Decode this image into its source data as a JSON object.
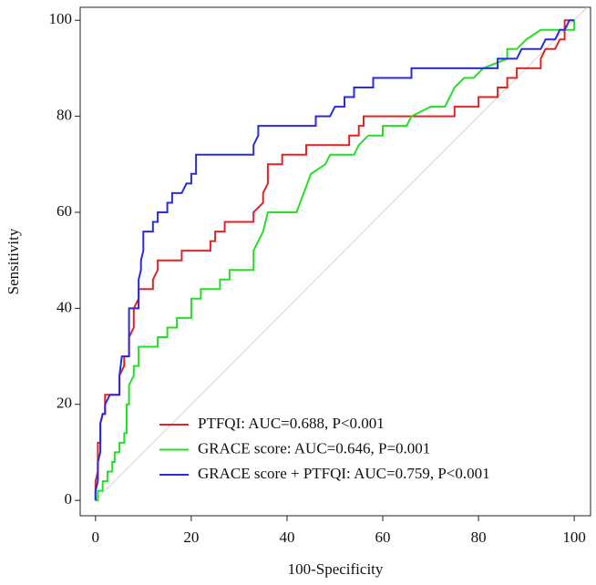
{
  "chart_data": {
    "type": "line",
    "title_x": "100-Specificity",
    "title_y": "Sensitivity",
    "xlim": [
      -3.2,
      103.4
    ],
    "ylim": [
      -3.2,
      102.7
    ],
    "xticks": [
      0,
      20,
      40,
      60,
      80,
      100
    ],
    "yticks": [
      0,
      20,
      40,
      60,
      80,
      100
    ],
    "reference_line": true,
    "legend": "lower center",
    "series": [
      {
        "name": "PTFQI: AUC=0.688, P<0.001",
        "color": "#e32222",
        "x": [
          0,
          0,
          0.5,
          0.5,
          1,
          1,
          1.5,
          2,
          2,
          5,
          5,
          6,
          6,
          7,
          7,
          8,
          8,
          9,
          9,
          12,
          12,
          13,
          13,
          18,
          18,
          24,
          24,
          25,
          25,
          27,
          27,
          33,
          33,
          35,
          35,
          36,
          36,
          39,
          39,
          44,
          44,
          53,
          53,
          55,
          55,
          56,
          56,
          75,
          75,
          80,
          80,
          84,
          84,
          86,
          86,
          88,
          88,
          93,
          93,
          94,
          96,
          97,
          98,
          98,
          100
        ],
        "values": [
          0,
          4,
          6,
          12,
          12,
          16,
          18,
          18,
          22,
          22,
          26,
          28,
          30,
          30,
          34,
          36,
          40,
          42,
          44,
          44,
          46,
          48,
          50,
          50,
          52,
          52,
          54,
          54,
          56,
          56,
          58,
          58,
          60,
          62,
          64,
          66,
          70,
          70,
          72,
          72,
          74,
          74,
          76,
          76,
          78,
          78,
          80,
          80,
          82,
          82,
          84,
          84,
          86,
          86,
          88,
          88,
          90,
          90,
          92,
          94,
          94,
          96,
          96,
          100,
          100
        ]
      },
      {
        "name": "GRACE score: AUC=0.646, P=0.001",
        "color": "#22e022",
        "x": [
          0,
          0.5,
          0.5,
          1.5,
          1.5,
          2.5,
          2.5,
          3.5,
          3.5,
          4,
          4,
          5,
          5,
          6,
          6,
          6.5,
          6.5,
          7,
          7,
          8,
          8,
          9,
          9,
          13,
          13,
          15,
          15,
          17,
          17,
          20,
          20,
          22,
          22,
          26,
          26,
          28,
          28,
          33,
          33,
          35,
          36,
          42,
          45,
          48,
          49,
          54,
          55,
          57,
          60,
          60,
          65,
          66,
          70,
          73,
          74,
          75,
          77,
          79,
          81,
          86,
          86,
          88,
          90,
          93,
          100,
          100
        ],
        "values": [
          0,
          0,
          2,
          2,
          4,
          4,
          6,
          6,
          8,
          8,
          10,
          10,
          12,
          12,
          14,
          14,
          20,
          20,
          24,
          26,
          28,
          28,
          32,
          32,
          34,
          34,
          36,
          36,
          38,
          38,
          42,
          42,
          44,
          44,
          46,
          46,
          48,
          48,
          52,
          56,
          60,
          60,
          68,
          70,
          72,
          72,
          74,
          76,
          76,
          78,
          78,
          80,
          82,
          82,
          84,
          86,
          88,
          88,
          90,
          92,
          94,
          94,
          96,
          98,
          98,
          100
        ]
      },
      {
        "name": "GRACE score + PTFQI: AUC=0.759, P<0.001",
        "color": "#2a2ae0",
        "x": [
          0,
          0,
          0.5,
          0.5,
          1,
          1,
          1.5,
          2,
          2,
          3,
          5,
          5,
          5.5,
          7,
          7,
          9,
          9,
          9.5,
          9.5,
          10,
          10,
          12,
          12,
          13,
          13,
          15,
          15,
          16,
          16,
          18,
          19,
          20,
          20,
          21,
          21,
          33,
          33,
          34,
          34,
          46,
          46,
          49,
          50,
          52,
          52,
          54,
          54,
          58,
          58,
          66,
          66,
          84,
          84,
          88,
          89,
          93,
          94,
          96,
          97,
          98,
          99,
          100
        ],
        "values": [
          0,
          2,
          4,
          8,
          10,
          16,
          18,
          18,
          20,
          22,
          22,
          26,
          30,
          30,
          40,
          40,
          46,
          48,
          50,
          52,
          56,
          56,
          58,
          58,
          60,
          60,
          62,
          62,
          64,
          64,
          66,
          66,
          68,
          68,
          72,
          72,
          74,
          76,
          78,
          78,
          80,
          80,
          82,
          82,
          84,
          84,
          86,
          86,
          88,
          88,
          90,
          90,
          92,
          92,
          94,
          94,
          96,
          96,
          98,
          98,
          100,
          100
        ]
      }
    ]
  }
}
